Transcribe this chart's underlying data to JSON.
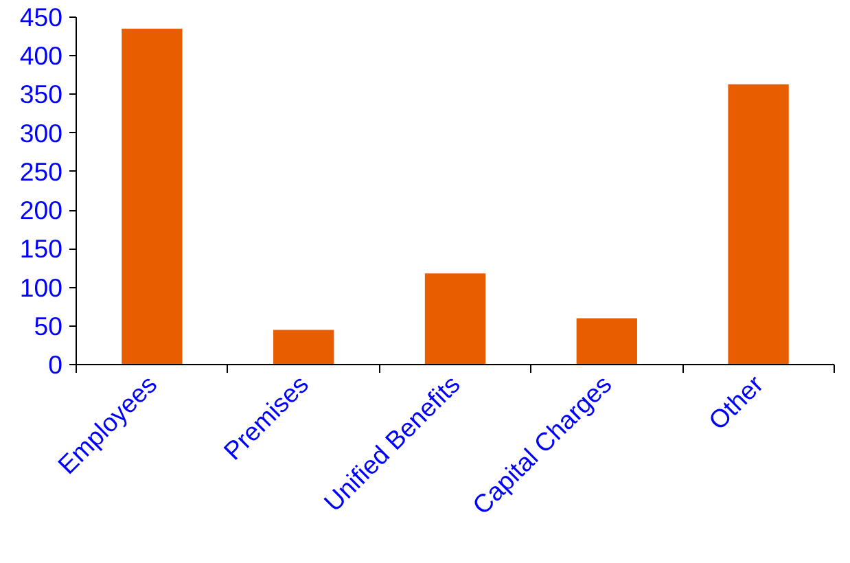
{
  "chart_data": {
    "type": "bar",
    "categories": [
      "Employees",
      "Premises",
      "Unified Benefits",
      "Capital Charges",
      "Other"
    ],
    "values": [
      435,
      45,
      118,
      60,
      363
    ],
    "color": "#e85d00",
    "ylim": [
      0,
      450
    ],
    "yticks": [
      0,
      50,
      100,
      150,
      200,
      250,
      300,
      350,
      400,
      450
    ],
    "grid": false
  }
}
